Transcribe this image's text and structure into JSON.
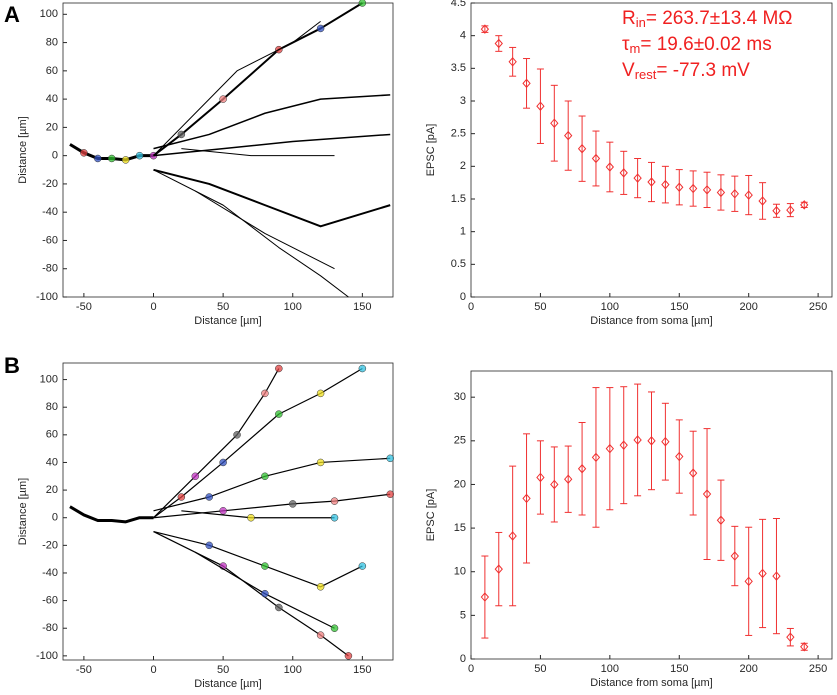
{
  "panel_labels": [
    "A",
    "B"
  ],
  "chart_data": [
    {
      "type": "morphology",
      "xlabel": "Distance [µm]",
      "ylabel": "Distance [µm]",
      "xlim": [
        -65,
        172
      ],
      "ylim": [
        -100,
        108
      ],
      "xticks": [
        -50,
        0,
        50,
        100,
        150
      ],
      "yticks": [
        -100,
        -80,
        -60,
        -40,
        -20,
        0,
        20,
        40,
        60,
        80,
        100
      ],
      "color": "#000000",
      "dot_colors": [
        "#e04040",
        "#3050c0",
        "#30c030",
        "#f0e020",
        "#30c0e0",
        "#c030c0",
        "#606060",
        "#f08080"
      ],
      "series": [
        {
          "x": [
            -60,
            -50,
            -40,
            -30,
            -20,
            -10,
            0
          ],
          "y": [
            8,
            2,
            -2,
            -2,
            -3,
            0,
            0
          ],
          "width": 3,
          "markers": true
        },
        {
          "x": [
            0,
            20,
            50,
            90,
            120,
            150
          ],
          "y": [
            0,
            15,
            40,
            75,
            90,
            108
          ],
          "width": 2,
          "markers": true
        },
        {
          "x": [
            0,
            30,
            60,
            100,
            120
          ],
          "y": [
            0,
            30,
            60,
            80,
            95
          ],
          "width": 1,
          "markers": false
        },
        {
          "x": [
            0,
            40,
            80,
            120,
            170
          ],
          "y": [
            5,
            15,
            30,
            40,
            43
          ],
          "width": 1.5,
          "markers": false
        },
        {
          "x": [
            0,
            50,
            100,
            170
          ],
          "y": [
            0,
            5,
            10,
            15
          ],
          "width": 1.5,
          "markers": false
        },
        {
          "x": [
            0,
            40,
            80,
            120,
            170
          ],
          "y": [
            -10,
            -20,
            -35,
            -50,
            -35
          ],
          "width": 2,
          "markers": false
        },
        {
          "x": [
            0,
            50,
            90,
            120,
            140
          ],
          "y": [
            -10,
            -35,
            -65,
            -85,
            -100
          ],
          "width": 1,
          "markers": false
        },
        {
          "x": [
            30,
            80,
            130
          ],
          "y": [
            -25,
            -55,
            -80
          ],
          "width": 1,
          "markers": false
        },
        {
          "x": [
            20,
            70,
            130
          ],
          "y": [
            5,
            0,
            0
          ],
          "width": 1,
          "markers": false
        }
      ]
    },
    {
      "type": "errorbar",
      "xlabel": "Distance from soma [µm]",
      "ylabel": "EPSC [pA]",
      "xlim": [
        0,
        260
      ],
      "ylim": [
        0,
        4.5
      ],
      "xticks": [
        0,
        50,
        100,
        150,
        200,
        250
      ],
      "yticks": [
        0,
        0.5,
        1,
        1.5,
        2,
        2.5,
        3,
        3.5,
        4,
        4.5
      ],
      "color": "#f03030",
      "annotation": [
        {
          "text": "R",
          "sub": "in",
          "rest": "= 263.7±13.4 MΩ"
        },
        {
          "text": "τ",
          "sub": "m",
          "rest": "= 19.6±0.02 ms"
        },
        {
          "text": "V",
          "sub": "rest",
          "rest": "= -77.3 mV"
        }
      ],
      "x": [
        10,
        20,
        30,
        40,
        50,
        60,
        70,
        80,
        90,
        100,
        110,
        120,
        130,
        140,
        150,
        160,
        170,
        180,
        190,
        200,
        210,
        220,
        230,
        240
      ],
      "values": [
        4.1,
        3.88,
        3.6,
        3.27,
        2.92,
        2.66,
        2.47,
        2.27,
        2.12,
        1.99,
        1.9,
        1.82,
        1.76,
        1.72,
        1.68,
        1.66,
        1.64,
        1.6,
        1.58,
        1.56,
        1.47,
        1.32,
        1.33,
        1.41
      ],
      "errors": [
        0.05,
        0.12,
        0.22,
        0.38,
        0.57,
        0.58,
        0.53,
        0.5,
        0.42,
        0.38,
        0.33,
        0.3,
        0.3,
        0.28,
        0.27,
        0.27,
        0.27,
        0.27,
        0.27,
        0.3,
        0.28,
        0.1,
        0.1,
        0.04
      ]
    },
    {
      "type": "morphology",
      "xlabel": "Distance [µm]",
      "ylabel": "Distance [µm]",
      "xlim": [
        -65,
        172
      ],
      "ylim": [
        -103,
        112
      ],
      "xticks": [
        -50,
        0,
        50,
        100,
        150
      ],
      "yticks": [
        -100,
        -80,
        -60,
        -40,
        -20,
        0,
        20,
        40,
        60,
        80,
        100
      ],
      "color": "#000000",
      "dot_colors": [
        "#e04040",
        "#3050c0",
        "#30c030",
        "#f0e020",
        "#30c0e0",
        "#c030c0",
        "#606060",
        "#f08080"
      ],
      "series": [
        {
          "x": [
            -60,
            -50,
            -40,
            -30,
            -20,
            -10,
            0
          ],
          "y": [
            8,
            2,
            -2,
            -2,
            -3,
            0,
            0
          ],
          "width": 3,
          "markers": false
        },
        {
          "x": [
            0,
            20,
            50,
            90,
            120,
            150
          ],
          "y": [
            0,
            15,
            40,
            75,
            90,
            108
          ],
          "width": 1.2,
          "markers": true
        },
        {
          "x": [
            0,
            30,
            60,
            80,
            90
          ],
          "y": [
            0,
            30,
            60,
            90,
            108
          ],
          "width": 1.2,
          "markers": true
        },
        {
          "x": [
            0,
            40,
            80,
            120,
            170
          ],
          "y": [
            5,
            15,
            30,
            40,
            43
          ],
          "width": 1.2,
          "markers": true
        },
        {
          "x": [
            0,
            50,
            100,
            130,
            170
          ],
          "y": [
            0,
            5,
            10,
            12,
            17
          ],
          "width": 1.2,
          "markers": true
        },
        {
          "x": [
            0,
            40,
            80,
            120,
            150
          ],
          "y": [
            -10,
            -20,
            -35,
            -50,
            -35
          ],
          "width": 1.2,
          "markers": true
        },
        {
          "x": [
            0,
            50,
            90,
            120,
            140
          ],
          "y": [
            -10,
            -35,
            -65,
            -85,
            -100
          ],
          "width": 1.2,
          "markers": true
        },
        {
          "x": [
            30,
            80,
            130
          ],
          "y": [
            -25,
            -55,
            -80
          ],
          "width": 1.2,
          "markers": true
        },
        {
          "x": [
            20,
            70,
            130
          ],
          "y": [
            5,
            0,
            0
          ],
          "width": 1.2,
          "markers": true
        }
      ]
    },
    {
      "type": "errorbar",
      "xlabel": "Distance from soma [µm]",
      "ylabel": "EPSC [pA]",
      "xlim": [
        0,
        260
      ],
      "ylim": [
        0,
        33
      ],
      "xticks": [
        0,
        50,
        100,
        150,
        200,
        250
      ],
      "yticks": [
        0,
        5,
        10,
        15,
        20,
        25,
        30
      ],
      "color": "#f03030",
      "x": [
        10,
        20,
        30,
        40,
        50,
        60,
        70,
        80,
        90,
        100,
        110,
        120,
        130,
        140,
        150,
        160,
        170,
        180,
        190,
        200,
        210,
        220,
        230,
        240
      ],
      "values": [
        7.1,
        10.3,
        14.1,
        18.4,
        20.8,
        20.0,
        20.6,
        21.8,
        23.1,
        24.1,
        24.5,
        25.1,
        25.0,
        24.9,
        23.2,
        21.3,
        18.9,
        15.9,
        11.8,
        8.9,
        9.8,
        9.5,
        2.5,
        1.4
      ],
      "errors": [
        4.7,
        4.2,
        8.0,
        7.4,
        4.2,
        4.3,
        3.8,
        5.3,
        8.0,
        7.0,
        6.7,
        6.4,
        5.6,
        4.4,
        4.2,
        4.8,
        7.5,
        4.6,
        3.4,
        6.2,
        6.2,
        6.6,
        1.0,
        0.4
      ]
    }
  ]
}
